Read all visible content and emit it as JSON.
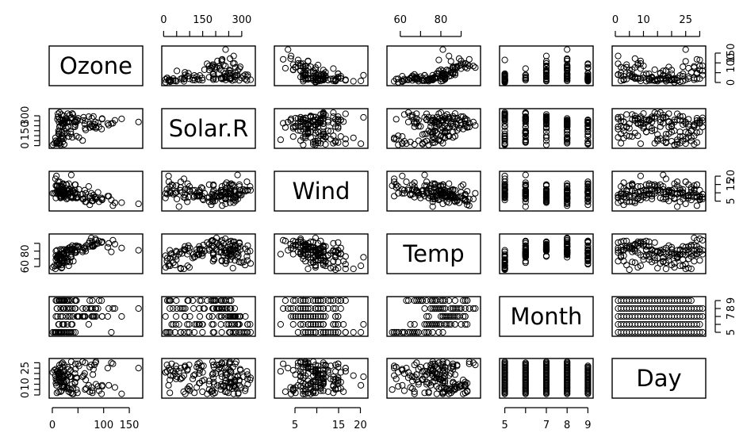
{
  "chart_data": {
    "type": "scatter",
    "variables": [
      "Ozone",
      "Solar.R",
      "Wind",
      "Temp",
      "Month",
      "Day"
    ],
    "axes": {
      "Ozone": {
        "lim": [
          0,
          170
        ],
        "ticks": [
          0,
          50,
          100,
          150
        ],
        "tick_labels": [
          "0",
          "",
          "100",
          "150"
        ]
      },
      "Solar.R": {
        "lim": [
          5,
          340
        ],
        "ticks": [
          0,
          50,
          100,
          150,
          200,
          250,
          300
        ],
        "tick_labels": [
          "0",
          "",
          "",
          "150",
          "",
          "",
          "300"
        ]
      },
      "Wind": {
        "lim": [
          1,
          21
        ],
        "ticks": [
          5,
          10,
          15,
          20
        ],
        "tick_labels": [
          "5",
          "",
          "15",
          "20"
        ]
      },
      "Temp": {
        "lim": [
          55,
          98
        ],
        "ticks": [
          60,
          70,
          80,
          90
        ],
        "tick_labels": [
          "60",
          "",
          "80",
          ""
        ]
      },
      "Month": {
        "lim": [
          4.9,
          9.1
        ],
        "ticks": [
          5,
          6,
          7,
          8,
          9
        ],
        "tick_labels": [
          "5",
          "",
          "7",
          "8",
          "9"
        ]
      },
      "Day": {
        "lim": [
          0,
          31
        ],
        "ticks": [
          0,
          5,
          10,
          15,
          20,
          25,
          30
        ],
        "tick_labels": [
          "0",
          "",
          "10",
          "",
          "",
          "25",
          ""
        ]
      }
    },
    "tick_sides": {
      "bottom": [
        "Ozone",
        "Wind",
        "Month"
      ],
      "top": [
        "Solar.R",
        "Temp",
        "Day"
      ],
      "left": [
        "Solar.R",
        "Temp",
        "Day"
      ],
      "right": [
        "Ozone",
        "Wind",
        "Month"
      ]
    },
    "data": {
      "Ozone": [
        41,
        36,
        12,
        18,
        null,
        28,
        23,
        19,
        8,
        null,
        7,
        16,
        11,
        14,
        18,
        14,
        34,
        6,
        30,
        11,
        1,
        11,
        4,
        32,
        null,
        null,
        null,
        23,
        45,
        115,
        37,
        null,
        null,
        null,
        null,
        null,
        null,
        29,
        null,
        71,
        39,
        null,
        null,
        23,
        null,
        null,
        21,
        37,
        20,
        12,
        13,
        null,
        null,
        null,
        null,
        null,
        null,
        null,
        null,
        null,
        null,
        135,
        49,
        32,
        null,
        64,
        40,
        77,
        97,
        97,
        85,
        null,
        10,
        27,
        null,
        7,
        48,
        35,
        61,
        79,
        63,
        16,
        null,
        null,
        80,
        108,
        20,
        52,
        82,
        50,
        64,
        59,
        39,
        9,
        16,
        78,
        35,
        66,
        122,
        89,
        110,
        null,
        null,
        44,
        28,
        65,
        null,
        22,
        59,
        23,
        31,
        44,
        21,
        9,
        null,
        45,
        168,
        73,
        null,
        76,
        118,
        84,
        85,
        96,
        78,
        73,
        91,
        47,
        32,
        20,
        23,
        21,
        24,
        44,
        21,
        28,
        9,
        13,
        46,
        18,
        13,
        24,
        16,
        13,
        23,
        36,
        7,
        14,
        30,
        null,
        14,
        18,
        20
      ],
      "Solar.R": [
        190,
        118,
        149,
        313,
        null,
        null,
        299,
        99,
        19,
        194,
        null,
        256,
        290,
        274,
        65,
        334,
        307,
        78,
        322,
        44,
        8,
        320,
        25,
        92,
        66,
        266,
        null,
        13,
        252,
        223,
        279,
        286,
        287,
        242,
        186,
        220,
        264,
        127,
        273,
        291,
        323,
        259,
        250,
        148,
        332,
        322,
        191,
        284,
        37,
        120,
        137,
        150,
        59,
        91,
        250,
        135,
        127,
        47,
        98,
        31,
        138,
        269,
        248,
        236,
        101,
        175,
        314,
        276,
        267,
        272,
        175,
        139,
        264,
        175,
        291,
        48,
        260,
        274,
        285,
        187,
        220,
        7,
        258,
        295,
        294,
        223,
        81,
        82,
        213,
        275,
        253,
        254,
        83,
        24,
        77,
        null,
        null,
        null,
        255,
        229,
        207,
        222,
        137,
        192,
        273,
        157,
        64,
        71,
        51,
        115,
        244,
        190,
        259,
        36,
        255,
        212,
        238,
        215,
        153,
        203,
        225,
        237,
        188,
        167,
        197,
        183,
        189,
        95,
        92,
        252,
        220,
        230,
        259,
        236,
        259,
        238,
        24,
        112,
        237,
        224,
        27,
        238,
        201,
        238,
        14,
        139,
        49,
        20,
        193,
        145,
        191,
        131,
        223
      ],
      "Wind": [
        7.4,
        8,
        12.6,
        11.5,
        14.3,
        14.9,
        8.6,
        13.8,
        20.1,
        8.6,
        6.9,
        9.7,
        9.2,
        10.9,
        13.2,
        11.5,
        12,
        18.4,
        11.5,
        9.7,
        9.7,
        16.6,
        9.7,
        12,
        16.6,
        14.9,
        8,
        12,
        14.9,
        5.7,
        7.4,
        8.6,
        9.7,
        16.1,
        9.2,
        8.6,
        14.3,
        9.7,
        6.9,
        13.8,
        11.5,
        10.9,
        9.2,
        8,
        13.8,
        11.5,
        14.9,
        20.7,
        9.2,
        11.5,
        10.3,
        6.3,
        1.7,
        4.6,
        6.3,
        8,
        8,
        10.3,
        11.5,
        14.9,
        8,
        4.1,
        9.2,
        9.2,
        10.9,
        4.6,
        10.9,
        5.1,
        6.3,
        5.7,
        7.4,
        8.6,
        14.3,
        14.9,
        14.9,
        14.3,
        6.9,
        10.3,
        6.3,
        5.1,
        11.5,
        6.9,
        9.7,
        11.5,
        8.6,
        8,
        8.6,
        12,
        7.4,
        7.4,
        7.4,
        9.2,
        6.9,
        13.8,
        7.4,
        6.9,
        7.4,
        4.6,
        4,
        10.3,
        8,
        8.6,
        11.5,
        11.5,
        11.5,
        9.7,
        11.5,
        10.3,
        6.3,
        7.4,
        10.9,
        10.3,
        15.5,
        14.3,
        12.6,
        9.7,
        3.4,
        8,
        5.7,
        9.7,
        2.3,
        6.3,
        6.3,
        6.9,
        5.1,
        2.8,
        4.6,
        7.4,
        15.5,
        10.9,
        10.3,
        10.9,
        9.7,
        14.9,
        15.5,
        6.3,
        10.9,
        11.5,
        6.9,
        13.8,
        10.3,
        10.3,
        8,
        12.6,
        9.2,
        10.3,
        10.3,
        16.6,
        6.9,
        13.2,
        14.3,
        8,
        11.5
      ],
      "Temp": [
        67,
        72,
        74,
        62,
        56,
        66,
        65,
        59,
        61,
        69,
        74,
        69,
        66,
        68,
        58,
        64,
        66,
        57,
        68,
        62,
        59,
        73,
        61,
        61,
        57,
        58,
        57,
        67,
        81,
        79,
        76,
        78,
        74,
        67,
        84,
        85,
        79,
        82,
        87,
        90,
        87,
        93,
        92,
        82,
        80,
        79,
        77,
        72,
        65,
        73,
        76,
        77,
        76,
        76,
        76,
        75,
        78,
        73,
        80,
        77,
        83,
        84,
        85,
        81,
        84,
        83,
        83,
        88,
        92,
        92,
        89,
        82,
        73,
        81,
        91,
        80,
        81,
        82,
        84,
        87,
        85,
        74,
        81,
        82,
        86,
        85,
        82,
        86,
        88,
        86,
        83,
        81,
        81,
        81,
        82,
        86,
        85,
        87,
        89,
        90,
        90,
        92,
        86,
        86,
        82,
        80,
        79,
        77,
        79,
        76,
        78,
        78,
        77,
        72,
        75,
        79,
        81,
        86,
        88,
        97,
        94,
        96,
        94,
        91,
        92,
        93,
        93,
        87,
        84,
        80,
        78,
        75,
        73,
        81,
        76,
        77,
        71,
        71,
        78,
        67,
        76,
        68,
        82,
        64,
        71,
        81,
        69,
        63,
        70,
        77,
        75,
        76,
        68
      ],
      "Month": [
        5,
        5,
        5,
        5,
        5,
        5,
        5,
        5,
        5,
        5,
        5,
        5,
        5,
        5,
        5,
        5,
        5,
        5,
        5,
        5,
        5,
        5,
        5,
        5,
        5,
        5,
        5,
        5,
        5,
        5,
        5,
        6,
        6,
        6,
        6,
        6,
        6,
        6,
        6,
        6,
        6,
        6,
        6,
        6,
        6,
        6,
        6,
        6,
        6,
        6,
        6,
        6,
        6,
        6,
        6,
        6,
        6,
        6,
        6,
        6,
        6,
        7,
        7,
        7,
        7,
        7,
        7,
        7,
        7,
        7,
        7,
        7,
        7,
        7,
        7,
        7,
        7,
        7,
        7,
        7,
        7,
        7,
        7,
        7,
        7,
        7,
        7,
        7,
        7,
        7,
        7,
        7,
        8,
        8,
        8,
        8,
        8,
        8,
        8,
        8,
        8,
        8,
        8,
        8,
        8,
        8,
        8,
        8,
        8,
        8,
        8,
        8,
        8,
        8,
        8,
        8,
        8,
        8,
        8,
        8,
        8,
        8,
        8,
        9,
        9,
        9,
        9,
        9,
        9,
        9,
        9,
        9,
        9,
        9,
        9,
        9,
        9,
        9,
        9,
        9,
        9,
        9,
        9,
        9,
        9,
        9,
        9,
        9,
        9,
        9
      ],
      "Day": [
        1,
        2,
        3,
        4,
        5,
        6,
        7,
        8,
        9,
        10,
        11,
        12,
        13,
        14,
        15,
        16,
        17,
        18,
        19,
        20,
        21,
        22,
        23,
        24,
        25,
        26,
        27,
        28,
        29,
        30,
        31,
        1,
        2,
        3,
        4,
        5,
        6,
        7,
        8,
        9,
        10,
        11,
        12,
        13,
        14,
        15,
        16,
        17,
        18,
        19,
        20,
        21,
        22,
        23,
        24,
        25,
        26,
        27,
        28,
        29,
        30,
        1,
        2,
        3,
        4,
        5,
        6,
        7,
        8,
        9,
        10,
        11,
        12,
        13,
        14,
        15,
        16,
        17,
        18,
        19,
        20,
        21,
        22,
        23,
        24,
        25,
        26,
        27,
        28,
        29,
        30,
        31,
        1,
        2,
        3,
        4,
        5,
        6,
        7,
        8,
        9,
        10,
        11,
        12,
        13,
        14,
        15,
        16,
        17,
        18,
        19,
        20,
        21,
        22,
        23,
        24,
        25,
        26,
        27,
        28,
        29,
        30,
        31,
        1,
        2,
        3,
        4,
        5,
        6,
        7,
        8,
        9,
        10,
        11,
        12,
        13,
        14,
        15,
        16,
        17,
        18,
        19,
        20,
        21,
        22,
        23,
        24,
        25,
        26,
        27,
        28,
        29,
        30
      ]
    }
  }
}
